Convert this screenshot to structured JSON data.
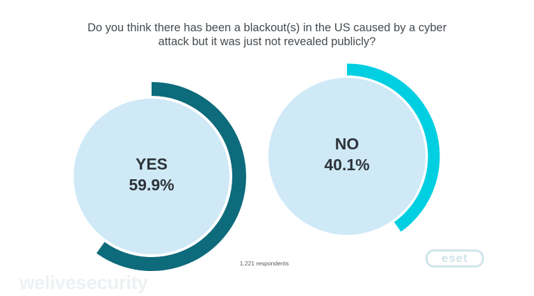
{
  "title_lines": [
    "Do you think there has been a blackout(s) in the US caused by a cyber",
    "attack but it was just not revealed publicly?"
  ],
  "chart_data": {
    "type": "pie",
    "title": "Do you think there has been a blackout(s) in the US caused by a cyber attack but it was just not revealed publicly?",
    "categories": [
      "YES",
      "NO"
    ],
    "values": [
      59.9,
      40.1
    ],
    "unit": "%",
    "series": [
      {
        "label": "YES",
        "display": "59.9%",
        "value": 59.9,
        "ring_color": "#0d6b7c",
        "inner_color": "#cfe9f7"
      },
      {
        "label": "NO",
        "display": "40.1%",
        "value": 40.1,
        "ring_color": "#00cfe1",
        "inner_color": "#cfe9f7"
      }
    ],
    "label_color": "#2d3338"
  },
  "footnote": "1,221 respondents",
  "logos": {
    "site": "welivesecurity",
    "brand": "eset"
  }
}
